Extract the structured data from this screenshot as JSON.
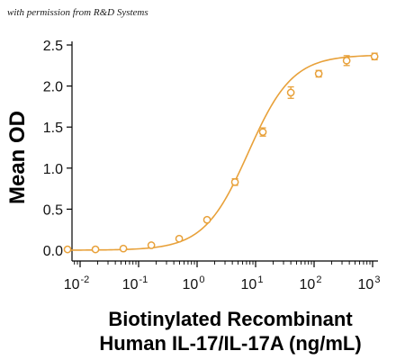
{
  "credit": "with permission from R&D Systems",
  "chart_data": {
    "type": "scatter",
    "title": "",
    "ylabel": "Mean OD",
    "xlabel_lines": [
      "Biotinylated Recombinant",
      "Human IL-17/IL-17A (ng/mL)"
    ],
    "x_scale": "log",
    "xlim": [
      0.005,
      1250
    ],
    "ylim": [
      -0.1,
      2.5
    ],
    "x_ticks": [
      0.01,
      0.1,
      1,
      10,
      100,
      1000
    ],
    "x_tick_labels": [
      {
        "base": "10",
        "exp": "-2"
      },
      {
        "base": "10",
        "exp": "-1"
      },
      {
        "base": "10",
        "exp": "0"
      },
      {
        "base": "10",
        "exp": "1"
      },
      {
        "base": "10",
        "exp": "2"
      },
      {
        "base": "10",
        "exp": "3"
      }
    ],
    "y_ticks": [
      0.0,
      0.5,
      1.0,
      1.5,
      2.0,
      2.5
    ],
    "y_tick_labels": [
      "0.0",
      "0.5",
      "1.0",
      "1.5",
      "2.0",
      "2.5"
    ],
    "grid": false,
    "legend": "none",
    "color": "#E8A13A",
    "series": [
      {
        "x": [
          0.0061,
          0.0183,
          0.0549,
          0.165,
          0.494,
          1.48,
          4.44,
          13.3,
          40,
          120,
          360,
          1080
        ],
        "y": [
          0.01,
          0.01,
          0.02,
          0.06,
          0.14,
          0.37,
          0.83,
          1.44,
          1.92,
          2.15,
          2.31,
          2.36
        ],
        "err": [
          0.01,
          0.01,
          0.01,
          0.01,
          0.02,
          0.02,
          0.04,
          0.05,
          0.07,
          0.04,
          0.06,
          0.04
        ]
      }
    ],
    "fit": {
      "model": "4PL",
      "bottom": 0.0,
      "top": 2.38,
      "ec50": 7.5,
      "hill": 1.15
    }
  }
}
